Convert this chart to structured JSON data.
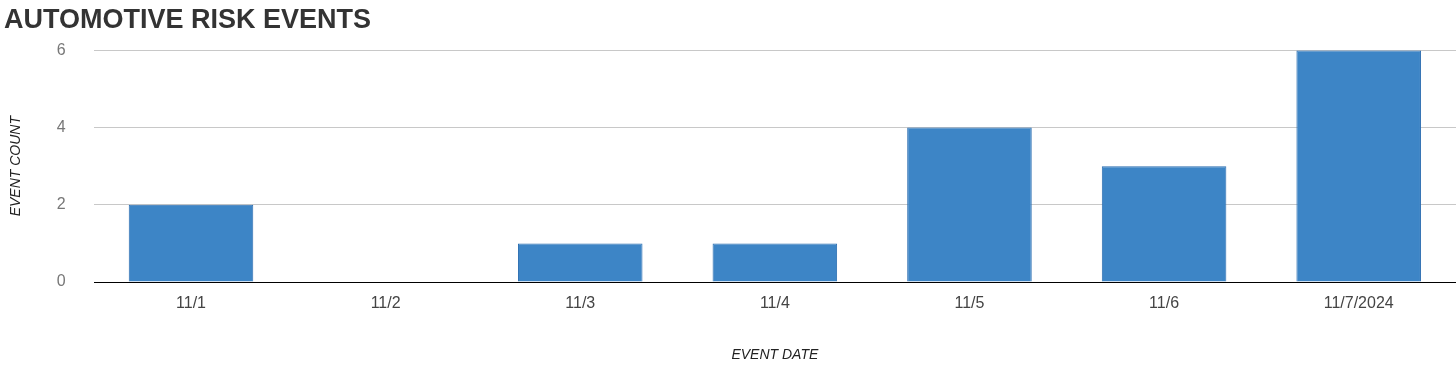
{
  "chart_data": {
    "type": "bar",
    "title": "AUTOMOTIVE RISK EVENTS",
    "xlabel": "EVENT DATE",
    "ylabel": "EVENT COUNT",
    "categories": [
      "11/1",
      "11/2",
      "11/3",
      "11/4",
      "11/5",
      "11/6",
      "11/7/2024"
    ],
    "values": [
      2,
      0,
      1,
      1,
      4,
      3,
      6
    ],
    "color": "#3d85c6",
    "ylim": [
      0,
      6
    ],
    "yticks": [
      0,
      2,
      4,
      6
    ],
    "grid": "y"
  }
}
